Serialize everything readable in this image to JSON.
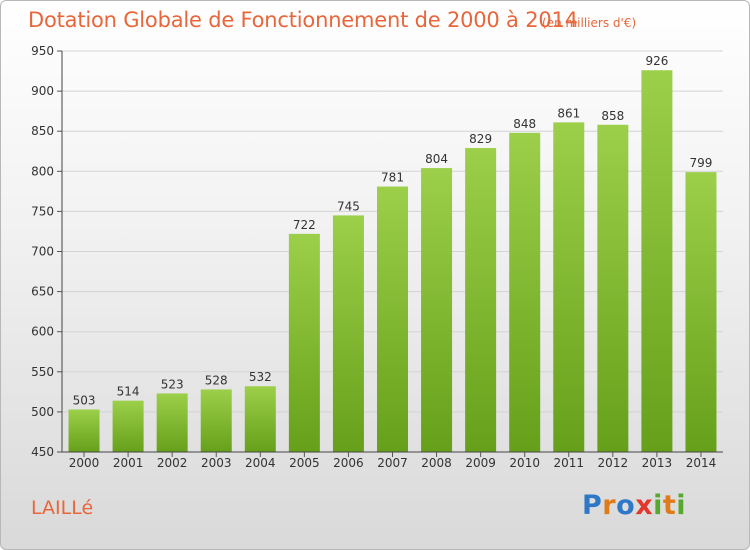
{
  "chart_data": {
    "type": "bar",
    "title": "Dotation Globale de Fonctionnement de 2000 à 2014",
    "subtitle": "(en milliers d'€)",
    "categories": [
      "2000",
      "2001",
      "2002",
      "2003",
      "2004",
      "2005",
      "2006",
      "2007",
      "2008",
      "2009",
      "2010",
      "2011",
      "2012",
      "2013",
      "2014"
    ],
    "values": [
      503,
      514,
      523,
      528,
      532,
      722,
      745,
      781,
      804,
      829,
      848,
      861,
      858,
      926,
      799
    ],
    "ylim": [
      450,
      950
    ],
    "yticks": [
      450,
      500,
      550,
      600,
      650,
      700,
      750,
      800,
      850,
      900,
      950
    ],
    "grid": true,
    "bar_color_top": "#9ccf4a",
    "bar_color_bottom": "#66a01a"
  },
  "commune": "LAILLé",
  "logo": {
    "letters": [
      "P",
      "r",
      "o",
      "x",
      "i",
      "t",
      "i"
    ],
    "colors": [
      "#2e78c7",
      "#e07b1a",
      "#2e78c7",
      "#e2372c",
      "#56a82e",
      "#e07b1a",
      "#56a82e"
    ]
  }
}
